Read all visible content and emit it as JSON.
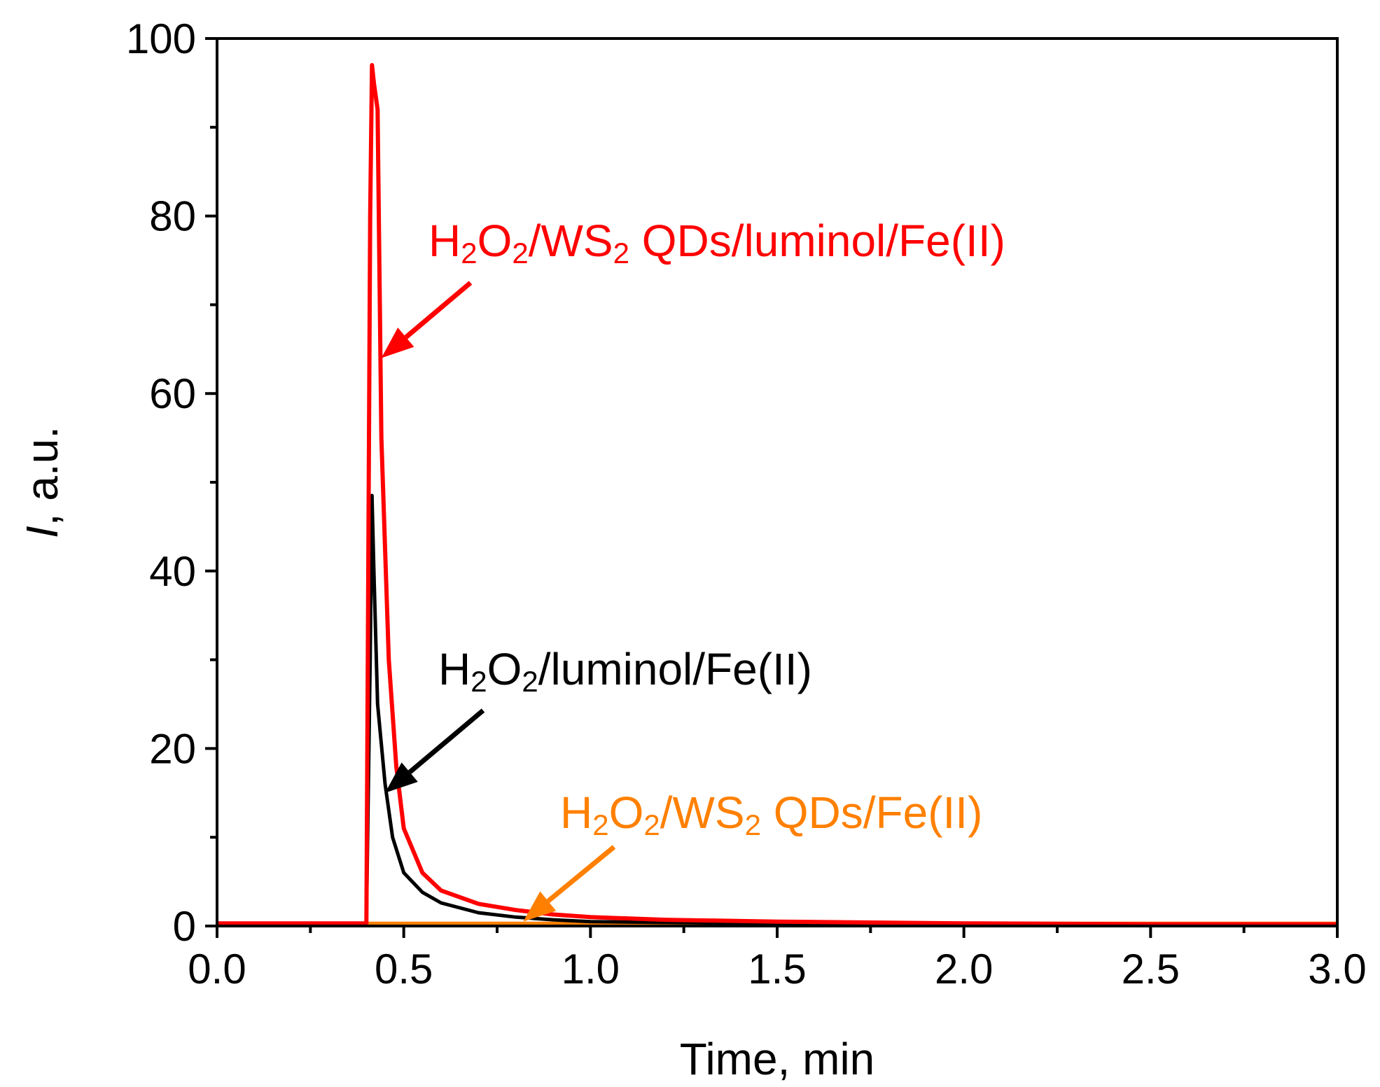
{
  "chart_data": {
    "type": "line",
    "xlabel": "Time, min",
    "ylabel_italic": "I",
    "ylabel_rest": ", a.u.",
    "xlim": [
      0,
      3
    ],
    "ylim": [
      0,
      100
    ],
    "x_ticks": [
      "0.0",
      "0.5",
      "1.0",
      "1.5",
      "2.0",
      "2.5",
      "3.0"
    ],
    "x_tick_values": [
      0,
      0.5,
      1.0,
      1.5,
      2.0,
      2.5,
      3.0
    ],
    "y_ticks": [
      "0",
      "20",
      "40",
      "60",
      "80",
      "100"
    ],
    "y_tick_values": [
      0,
      20,
      40,
      60,
      80,
      100
    ],
    "grid": false,
    "series": [
      {
        "name": "H2O2/WS2 QDs/Fe(II)",
        "color": "#ff8000",
        "x": [
          0,
          0.4,
          0.8,
          1.5,
          2.0,
          3.0
        ],
        "y": [
          0.3,
          0.3,
          0.3,
          0.3,
          0.3,
          0.3
        ]
      },
      {
        "name": "H2O2/luminol/Fe(II)",
        "color": "#000000",
        "x": [
          0,
          0.39,
          0.4,
          0.41,
          0.415,
          0.42,
          0.43,
          0.45,
          0.47,
          0.5,
          0.55,
          0.6,
          0.7,
          0.8,
          0.9,
          1.0,
          1.2,
          1.5,
          2.0,
          2.5,
          3.0
        ],
        "y": [
          0.3,
          0.3,
          0.3,
          30,
          48.5,
          40,
          25,
          16,
          10,
          6,
          3.8,
          2.6,
          1.5,
          1.0,
          0.7,
          0.5,
          0.4,
          0.3,
          0.3,
          0.2,
          0.2
        ]
      },
      {
        "name": "H2O2/WS2 QDs/luminol/Fe(II)",
        "color": "#ff0000",
        "x": [
          0,
          0.39,
          0.4,
          0.41,
          0.415,
          0.42,
          0.43,
          0.44,
          0.46,
          0.48,
          0.5,
          0.55,
          0.6,
          0.7,
          0.8,
          0.9,
          1.0,
          1.2,
          1.5,
          2.0,
          2.5,
          3.0
        ],
        "y": [
          0.3,
          0.3,
          0.3,
          80,
          97,
          95,
          92,
          55,
          30,
          18,
          11,
          6,
          4,
          2.5,
          1.8,
          1.3,
          1.0,
          0.7,
          0.5,
          0.3,
          0.2,
          0.2
        ]
      }
    ],
    "annotations": [
      {
        "text_parts": [
          "H",
          "2",
          "O",
          "2",
          "/WS",
          "2",
          " QDs/luminol/Fe(II)"
        ],
        "color": "#ff0000",
        "arrow_to": [
          0.44,
          64
        ]
      },
      {
        "text_parts": [
          "H",
          "2",
          "O",
          "2",
          "/luminol/Fe(II)"
        ],
        "color": "#000000",
        "arrow_to": [
          0.45,
          15
        ]
      },
      {
        "text_parts": [
          "H",
          "2",
          "O",
          "2",
          "/WS",
          "2",
          " QDs/Fe(II)"
        ],
        "color": "#ff8000",
        "arrow_to": [
          0.82,
          0.5
        ]
      }
    ]
  }
}
